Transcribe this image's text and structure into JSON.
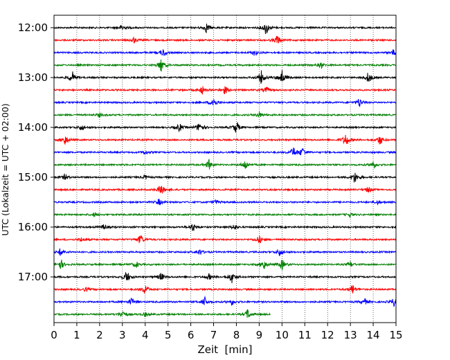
{
  "chart_data": {
    "type": "line",
    "title": "",
    "xlabel": "Zeit  [min]",
    "ylabel": "UTC (Lokalzeit = UTC + 02:00)",
    "xlim": [
      0,
      15
    ],
    "x_ticks": [
      "0",
      "1",
      "2",
      "3",
      "4",
      "5",
      "6",
      "7",
      "8",
      "9",
      "10",
      "11",
      "12",
      "13",
      "14",
      "15"
    ],
    "y_ticks": [
      "12:00",
      "13:00",
      "14:00",
      "15:00",
      "16:00",
      "17:00"
    ],
    "grid": "vertical dotted",
    "legend": "none",
    "trace_colors": [
      "#000000",
      "#ff0000",
      "#0000ff",
      "#008000"
    ],
    "trace_interval_min": 15,
    "traces": [
      {
        "start": "12:00",
        "end_min": 15,
        "events": [
          {
            "t": 6.7,
            "amp": 5
          },
          {
            "t": 9.3,
            "amp": 7
          },
          {
            "t": 3.0,
            "amp": 3
          }
        ]
      },
      {
        "start": "12:15",
        "end_min": 15,
        "events": [
          {
            "t": 9.8,
            "amp": 5
          },
          {
            "t": 3.5,
            "amp": 3
          }
        ]
      },
      {
        "start": "12:30",
        "end_min": 15,
        "events": [
          {
            "t": 4.8,
            "amp": 4
          },
          {
            "t": 8.8,
            "amp": 3
          },
          {
            "t": 14.9,
            "amp": 3
          }
        ]
      },
      {
        "start": "12:45",
        "end_min": 15,
        "events": [
          {
            "t": 4.7,
            "amp": 7
          },
          {
            "t": 11.7,
            "amp": 3
          }
        ]
      },
      {
        "start": "13:00",
        "end_min": 15,
        "events": [
          {
            "t": 0.8,
            "amp": 6
          },
          {
            "t": 9.1,
            "amp": 7
          },
          {
            "t": 10.0,
            "amp": 8
          },
          {
            "t": 13.8,
            "amp": 6
          }
        ]
      },
      {
        "start": "13:15",
        "end_min": 15,
        "events": [
          {
            "t": 6.5,
            "amp": 4
          },
          {
            "t": 7.5,
            "amp": 4
          },
          {
            "t": 9.3,
            "amp": 3
          }
        ]
      },
      {
        "start": "13:30",
        "end_min": 15,
        "events": [
          {
            "t": 7.0,
            "amp": 6
          },
          {
            "t": 13.4,
            "amp": 5
          }
        ]
      },
      {
        "start": "13:45",
        "end_min": 15,
        "events": [
          {
            "t": 9.0,
            "amp": 3
          },
          {
            "t": 2.0,
            "amp": 2
          }
        ]
      },
      {
        "start": "14:00",
        "end_min": 15,
        "events": [
          {
            "t": 1.2,
            "amp": 3
          },
          {
            "t": 6.4,
            "amp": 6
          },
          {
            "t": 8.0,
            "amp": 6
          },
          {
            "t": 5.5,
            "amp": 4
          }
        ]
      },
      {
        "start": "14:15",
        "end_min": 15,
        "events": [
          {
            "t": 0.5,
            "amp": 5
          },
          {
            "t": 12.8,
            "amp": 7
          },
          {
            "t": 14.3,
            "amp": 5
          }
        ]
      },
      {
        "start": "14:30",
        "end_min": 15,
        "events": [
          {
            "t": 10.5,
            "amp": 5
          },
          {
            "t": 10.9,
            "amp": 5
          },
          {
            "t": 4.0,
            "amp": 2
          }
        ]
      },
      {
        "start": "14:45",
        "end_min": 15,
        "events": [
          {
            "t": 6.8,
            "amp": 5
          },
          {
            "t": 8.4,
            "amp": 5
          },
          {
            "t": 14.0,
            "amp": 4
          }
        ]
      },
      {
        "start": "15:00",
        "end_min": 15,
        "events": [
          {
            "t": 0.5,
            "amp": 3
          },
          {
            "t": 13.2,
            "amp": 6
          },
          {
            "t": 4.0,
            "amp": 2
          }
        ]
      },
      {
        "start": "15:15",
        "end_min": 15,
        "events": [
          {
            "t": 4.7,
            "amp": 6
          },
          {
            "t": 13.8,
            "amp": 3
          }
        ]
      },
      {
        "start": "15:30",
        "end_min": 15,
        "events": [
          {
            "t": 4.6,
            "amp": 3
          },
          {
            "t": 7.1,
            "amp": 2
          },
          {
            "t": 14.2,
            "amp": 2
          }
        ]
      },
      {
        "start": "15:45",
        "end_min": 15,
        "events": [
          {
            "t": 1.8,
            "amp": 2
          },
          {
            "t": 13.0,
            "amp": 2
          }
        ]
      },
      {
        "start": "16:00",
        "end_min": 15,
        "events": [
          {
            "t": 2.2,
            "amp": 3
          },
          {
            "t": 6.1,
            "amp": 4
          },
          {
            "t": 7.9,
            "amp": 3
          }
        ]
      },
      {
        "start": "16:15",
        "end_min": 15,
        "events": [
          {
            "t": 3.8,
            "amp": 5
          },
          {
            "t": 9.0,
            "amp": 4
          },
          {
            "t": 1.2,
            "amp": 2
          }
        ]
      },
      {
        "start": "16:30",
        "end_min": 15,
        "events": [
          {
            "t": 0.3,
            "amp": 4
          },
          {
            "t": 6.4,
            "amp": 3
          },
          {
            "t": 9.9,
            "amp": 4
          }
        ]
      },
      {
        "start": "16:45",
        "end_min": 15,
        "events": [
          {
            "t": 0.3,
            "amp": 5
          },
          {
            "t": 3.6,
            "amp": 3
          },
          {
            "t": 9.2,
            "amp": 5
          },
          {
            "t": 10.0,
            "amp": 5
          },
          {
            "t": 13.0,
            "amp": 3
          }
        ]
      },
      {
        "start": "17:00",
        "end_min": 15,
        "events": [
          {
            "t": 3.2,
            "amp": 6
          },
          {
            "t": 4.7,
            "amp": 4
          },
          {
            "t": 7.8,
            "amp": 6
          },
          {
            "t": 6.8,
            "amp": 3
          }
        ]
      },
      {
        "start": "17:15",
        "end_min": 15,
        "events": [
          {
            "t": 4.0,
            "amp": 5
          },
          {
            "t": 13.1,
            "amp": 5
          },
          {
            "t": 1.4,
            "amp": 2
          }
        ]
      },
      {
        "start": "17:30",
        "end_min": 15,
        "events": [
          {
            "t": 3.4,
            "amp": 4
          },
          {
            "t": 6.6,
            "amp": 5
          },
          {
            "t": 7.8,
            "amp": 3
          },
          {
            "t": 13.6,
            "amp": 4
          },
          {
            "t": 14.9,
            "amp": 4
          }
        ]
      },
      {
        "start": "17:45",
        "end_min": 9.5,
        "events": [
          {
            "t": 3.0,
            "amp": 4
          },
          {
            "t": 8.5,
            "amp": 5
          },
          {
            "t": 4.0,
            "amp": 2
          }
        ]
      }
    ]
  }
}
